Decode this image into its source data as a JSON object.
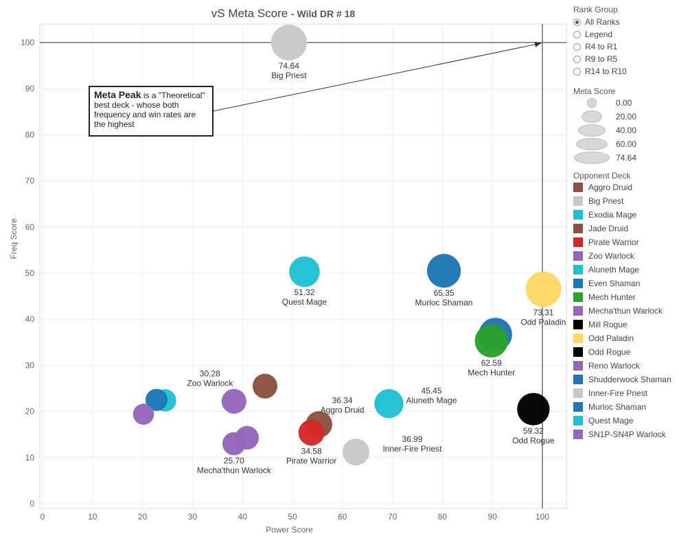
{
  "header": {
    "title": "vS Meta Score",
    "subtitle": "- Wild DR # 18"
  },
  "callout": {
    "bold": "Meta Peak",
    "text": " is a \"Theoretical\" best deck - whose both frequency and win rates are the highest"
  },
  "rank_group": {
    "label": "Rank Group",
    "options": [
      {
        "label": "All Ranks",
        "selected": true
      },
      {
        "label": "Legend",
        "selected": false
      },
      {
        "label": "R4 to R1",
        "selected": false
      },
      {
        "label": "R9 to R5",
        "selected": false
      },
      {
        "label": "R14 to R10",
        "selected": false
      }
    ]
  },
  "meta_score_legend": {
    "label": "Meta Score",
    "values": [
      "0.00",
      "20.00",
      "40.00",
      "60.00",
      "74.64"
    ]
  },
  "opponent_deck": {
    "label": "Opponent Deck",
    "items": [
      {
        "name": "Aggro Druid",
        "color": "#8c5243"
      },
      {
        "name": "Big Priest",
        "color": "#c8c8c8"
      },
      {
        "name": "Exodia Mage",
        "color": "#1ec1d2"
      },
      {
        "name": "Jade Druid",
        "color": "#8c5243"
      },
      {
        "name": "Pirate Warrior",
        "color": "#d62728"
      },
      {
        "name": "Zoo Warlock",
        "color": "#9467bd"
      },
      {
        "name": "Aluneth Mage",
        "color": "#1ec1d2"
      },
      {
        "name": "Even Shaman",
        "color": "#1f77b4"
      },
      {
        "name": "Mech Hunter",
        "color": "#2ca02c"
      },
      {
        "name": "Mecha'thun Warlock",
        "color": "#9467bd"
      },
      {
        "name": "Mill Rogue",
        "color": "#000000"
      },
      {
        "name": "Odd Paladin",
        "color": "#ffd966"
      },
      {
        "name": "Odd Rogue",
        "color": "#000000"
      },
      {
        "name": "Reno Warlock",
        "color": "#9467bd"
      },
      {
        "name": "Shudderwock Shaman",
        "color": "#1f77b4"
      },
      {
        "name": "Inner-Fire Priest",
        "color": "#c8c8c8"
      },
      {
        "name": "Murloc Shaman",
        "color": "#1f77b4"
      },
      {
        "name": "Quest Mage",
        "color": "#1ec1d2"
      },
      {
        "name": "SN1P-SN4P Warlock",
        "color": "#9467bd"
      }
    ]
  },
  "chart_data": {
    "type": "scatter",
    "title": "vS Meta Score - Wild DR # 18",
    "xlabel": "Power Score",
    "ylabel": "Freq Score",
    "xlim": [
      0,
      105
    ],
    "ylim": [
      0,
      105
    ],
    "x_ticks": [
      0,
      10,
      20,
      30,
      40,
      50,
      60,
      70,
      80,
      90,
      100
    ],
    "y_ticks": [
      0,
      10,
      20,
      30,
      40,
      50,
      60,
      70,
      80,
      90,
      100
    ],
    "grid": true,
    "reference_lines": {
      "x": 100,
      "y": 100
    },
    "points": [
      {
        "deck": "Big Priest",
        "x": 49.3,
        "y": 100,
        "meta": 74.64,
        "color": "#c8c8c8",
        "label": [
          "74.64",
          "Big Priest"
        ]
      },
      {
        "deck": "Quest Mage",
        "x": 52.4,
        "y": 50.3,
        "meta": 51.32,
        "color": "#1ec1d2",
        "label": [
          "51.32",
          "Quest Mage"
        ]
      },
      {
        "deck": "Murloc Shaman",
        "x": 80.3,
        "y": 50.5,
        "meta": 65.35,
        "color": "#1f77b4",
        "label": [
          "65.35",
          "Murloc Shaman"
        ]
      },
      {
        "deck": "Odd Paladin",
        "x": 100.2,
        "y": 46.5,
        "meta": 73.31,
        "color": "#ffd966",
        "label": [
          "73.31",
          "Odd Paladin"
        ]
      },
      {
        "deck": "Mech Hunter",
        "x": 89.8,
        "y": 35.3,
        "meta": 62.59,
        "color": "#2ca02c",
        "label": [
          "62.59",
          "Mech Hunter"
        ]
      },
      {
        "deck": "Even Shaman",
        "x": 90.6,
        "y": 36.7,
        "meta": 63.5,
        "color": "#1f77b4",
        "label": null
      },
      {
        "deck": "Odd Rogue",
        "x": 98.2,
        "y": 20.5,
        "meta": 59.32,
        "color": "#000000",
        "label": [
          "59.32",
          "Odd Rogue"
        ]
      },
      {
        "deck": "Aluneth Mage",
        "x": 69.3,
        "y": 21.7,
        "meta": 45.45,
        "color": "#1ec1d2",
        "label": [
          "45.45",
          "Aluneth Mage"
        ]
      },
      {
        "deck": "Aggro Druid",
        "x": 55.3,
        "y": 17.2,
        "meta": 36.34,
        "color": "#8c5243",
        "label": [
          "36.34",
          "Aggro Druid"
        ]
      },
      {
        "deck": "Pirate Warrior",
        "x": 53.8,
        "y": 15.4,
        "meta": 34.58,
        "color": "#d62728",
        "label": [
          "34.58",
          "Pirate Warrior"
        ]
      },
      {
        "deck": "Inner-Fire Priest",
        "x": 62.7,
        "y": 11.2,
        "meta": 36.99,
        "color": "#c8c8c8",
        "label": [
          "36.99",
          "Inner-Fire Priest"
        ]
      },
      {
        "deck": "Jade Druid",
        "x": 44.5,
        "y": 25.5,
        "meta": 30.5,
        "color": "#8c5243",
        "label": null
      },
      {
        "deck": "Zoo Warlock",
        "x": 38.3,
        "y": 22.2,
        "meta": 30.28,
        "color": "#9467bd",
        "label": [
          "30.28",
          "Zoo Warlock"
        ]
      },
      {
        "deck": "Reno Warlock",
        "x": 40.9,
        "y": 14.3,
        "meta": 27.0,
        "color": "#9467bd",
        "label": null
      },
      {
        "deck": "Mecha'thun Warlock",
        "x": 38.3,
        "y": 13.0,
        "meta": 25.7,
        "color": "#9467bd",
        "label": [
          "25.70",
          "Mecha'thun Warlock"
        ]
      },
      {
        "deck": "Shudderwock Shaman",
        "x": 22.8,
        "y": 22.5,
        "meta": 22.7,
        "color": "#1f77b4",
        "label": null
      },
      {
        "deck": "Exodia Mage",
        "x": 24.5,
        "y": 22.4,
        "meta": 23.4,
        "color": "#1ec1d2",
        "label": null
      },
      {
        "deck": "SN1P-SN4P Warlock",
        "x": 20.2,
        "y": 19.4,
        "meta": 19.8,
        "color": "#9467bd",
        "label": null
      }
    ]
  }
}
